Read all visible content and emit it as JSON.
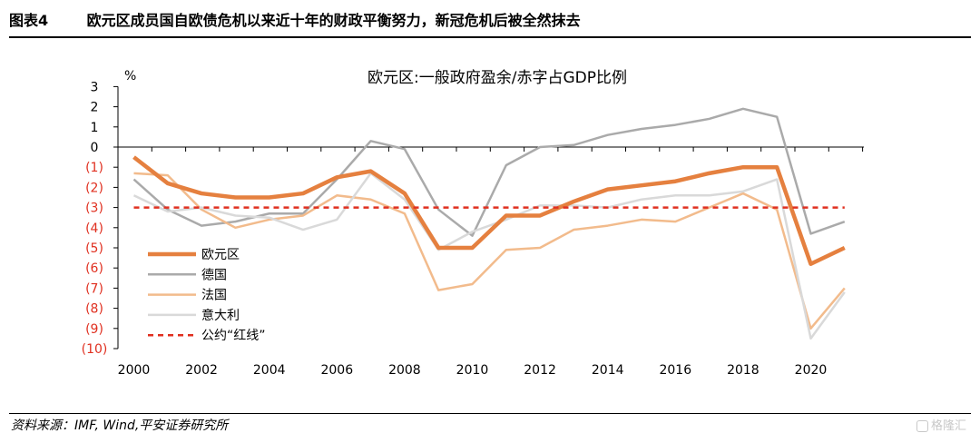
{
  "header": {
    "label": "图表4",
    "title": "欧元区成员国自欧债危机以来近十年的财政平衡努力，新冠危机后被全然抹去"
  },
  "footer": {
    "source": "资料来源：IMF, Wind,平安证券研究所",
    "watermark": "格隆汇"
  },
  "colors": {
    "euro_area": "#e5803f",
    "germany": "#aaaaaa",
    "france": "#f2bb8c",
    "italy": "#d9d9d9",
    "red_line": "#e03020",
    "negative_tick": "#e03020"
  },
  "chart_data": {
    "type": "line",
    "title": "欧元区:一般政府盈余/赤字占GDP比例",
    "ylabel": "%",
    "xlabel": "",
    "ylim": [
      -10,
      3
    ],
    "xlim": [
      2000,
      2021
    ],
    "y_ticks": [
      3,
      2,
      1,
      0,
      -1,
      -2,
      -3,
      -4,
      -5,
      -6,
      -7,
      -8,
      -9,
      -10
    ],
    "y_tick_labels": [
      "3",
      "2",
      "1",
      "0",
      "(1)",
      "(2)",
      "(3)",
      "(4)",
      "(5)",
      "(6)",
      "(7)",
      "(8)",
      "(9)",
      "(10)"
    ],
    "x_ticks": [
      2000,
      2002,
      2004,
      2006,
      2008,
      2010,
      2012,
      2014,
      2016,
      2018,
      2020
    ],
    "x_tick_labels": [
      "2000",
      "2002",
      "2004",
      "2006",
      "2008",
      "2010",
      "2012",
      "2014",
      "2016",
      "2018",
      "2020"
    ],
    "grid": false,
    "legend_position": "bottom-left",
    "x": [
      2000,
      2001,
      2002,
      2003,
      2004,
      2005,
      2006,
      2007,
      2008,
      2009,
      2010,
      2011,
      2012,
      2013,
      2014,
      2015,
      2016,
      2017,
      2018,
      2019,
      2020,
      2021
    ],
    "series": [
      {
        "name": "德国",
        "color_key": "germany",
        "width": 2.5,
        "dash": "",
        "values": [
          -1.6,
          -3.1,
          -3.9,
          -3.7,
          -3.3,
          -3.3,
          -1.6,
          0.3,
          -0.1,
          -3.1,
          -4.4,
          -0.9,
          0.0,
          0.1,
          0.6,
          0.9,
          1.1,
          1.4,
          1.9,
          1.5,
          -4.3,
          -3.7
        ]
      },
      {
        "name": "法国",
        "color_key": "france",
        "width": 2.5,
        "dash": "",
        "values": [
          -1.3,
          -1.4,
          -3.1,
          -4.0,
          -3.6,
          -3.4,
          -2.4,
          -2.6,
          -3.3,
          -7.1,
          -6.8,
          -5.1,
          -5.0,
          -4.1,
          -3.9,
          -3.6,
          -3.7,
          -3.0,
          -2.3,
          -3.1,
          -9.0,
          -7.0
        ]
      },
      {
        "name": "意大利",
        "color_key": "italy",
        "width": 2.5,
        "dash": "",
        "values": [
          -2.4,
          -3.2,
          -3.0,
          -3.4,
          -3.5,
          -4.1,
          -3.6,
          -1.3,
          -2.6,
          -5.1,
          -4.2,
          -3.6,
          -2.9,
          -2.9,
          -3.0,
          -2.6,
          -2.4,
          -2.4,
          -2.2,
          -1.6,
          -9.5,
          -7.2
        ]
      },
      {
        "name": "欧元区",
        "color_key": "euro_area",
        "width": 4.5,
        "dash": "",
        "values": [
          -0.5,
          -1.8,
          -2.3,
          -2.5,
          -2.5,
          -2.3,
          -1.5,
          -1.2,
          -2.3,
          -5.0,
          -5.0,
          -3.4,
          -3.4,
          -2.7,
          -2.1,
          -1.9,
          -1.7,
          -1.3,
          -1.0,
          -1.0,
          -5.8,
          -5.0
        ]
      },
      {
        "name": "公约“红线”",
        "color_key": "red_line",
        "width": 2.5,
        "dash": "6,5",
        "values": [
          -3,
          -3,
          -3,
          -3,
          -3,
          -3,
          -3,
          -3,
          -3,
          -3,
          -3,
          -3,
          -3,
          -3,
          -3,
          -3,
          -3,
          -3,
          -3,
          -3,
          -3,
          -3
        ]
      }
    ],
    "legend_order": [
      "欧元区",
      "德国",
      "法国",
      "意大利",
      "公约“红线”"
    ]
  }
}
